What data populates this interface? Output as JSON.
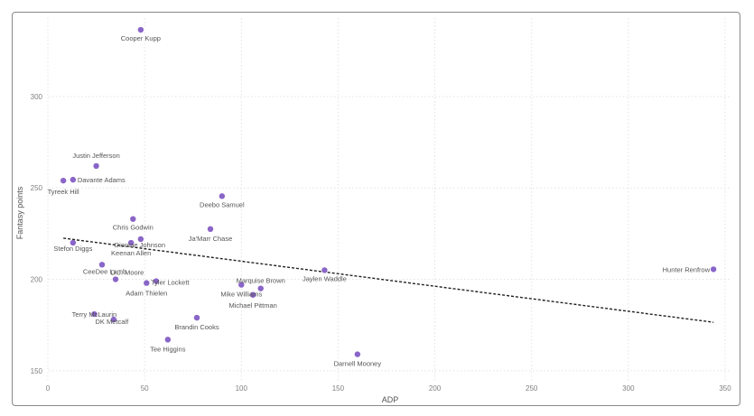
{
  "chart_data": {
    "type": "scatter",
    "xlabel": "ADP",
    "ylabel": "Fantasy points",
    "xlim": [
      0,
      350
    ],
    "ylim": [
      143,
      337
    ],
    "xticks": [
      0,
      50,
      100,
      150,
      200,
      250,
      300,
      350
    ],
    "yticks": [
      150,
      200,
      250,
      300
    ],
    "grid": true,
    "point_color": "#8a65c8",
    "trendline": {
      "style": "dashed",
      "color": "#222222",
      "x": [
        8,
        344
      ],
      "y": [
        222.5,
        176.5
      ]
    },
    "points": [
      {
        "label": "Cooper Kupp",
        "x": 48,
        "y": 336.5
      },
      {
        "label": "Justin Jefferson",
        "x": 25,
        "y": 262
      },
      {
        "label": "Davante Adams",
        "x": 13,
        "y": 254.5
      },
      {
        "label": "Tyreek Hill",
        "x": 8,
        "y": 254
      },
      {
        "label": "Deebo Samuel",
        "x": 90,
        "y": 245.5
      },
      {
        "label": "Chris Godwin",
        "x": 44,
        "y": 233
      },
      {
        "label": "Ja'Marr Chase",
        "x": 84,
        "y": 227.5
      },
      {
        "label": "Diontae Johnson",
        "x": 48,
        "y": 222
      },
      {
        "label": "Keenan Allen",
        "x": 43,
        "y": 220
      },
      {
        "label": "Stefon Diggs",
        "x": 13,
        "y": 220
      },
      {
        "label": "CeeDee Lamb",
        "x": 28,
        "y": 208
      },
      {
        "label": "D.J. Moore",
        "x": 35,
        "y": 200
      },
      {
        "label": "Tyler Lockett",
        "x": 56,
        "y": 199
      },
      {
        "label": "Adam Thielen",
        "x": 51,
        "y": 198
      },
      {
        "label": "Jaylen Waddle",
        "x": 143,
        "y": 205
      },
      {
        "label": "Hunter Renfrow",
        "x": 344,
        "y": 205.5
      },
      {
        "label": "Marquise Brown",
        "x": 110,
        "y": 195
      },
      {
        "label": "Mike Williams",
        "x": 100,
        "y": 197
      },
      {
        "label": "Michael Pittman",
        "x": 106,
        "y": 191.5
      },
      {
        "label": "Terry McLaurin",
        "x": 24,
        "y": 181
      },
      {
        "label": "DK Metcalf",
        "x": 34,
        "y": 178
      },
      {
        "label": "Brandin Cooks",
        "x": 77,
        "y": 179
      },
      {
        "label": "Tee Higgins",
        "x": 62,
        "y": 167
      },
      {
        "label": "Darnell Mooney",
        "x": 160,
        "y": 159
      }
    ]
  }
}
